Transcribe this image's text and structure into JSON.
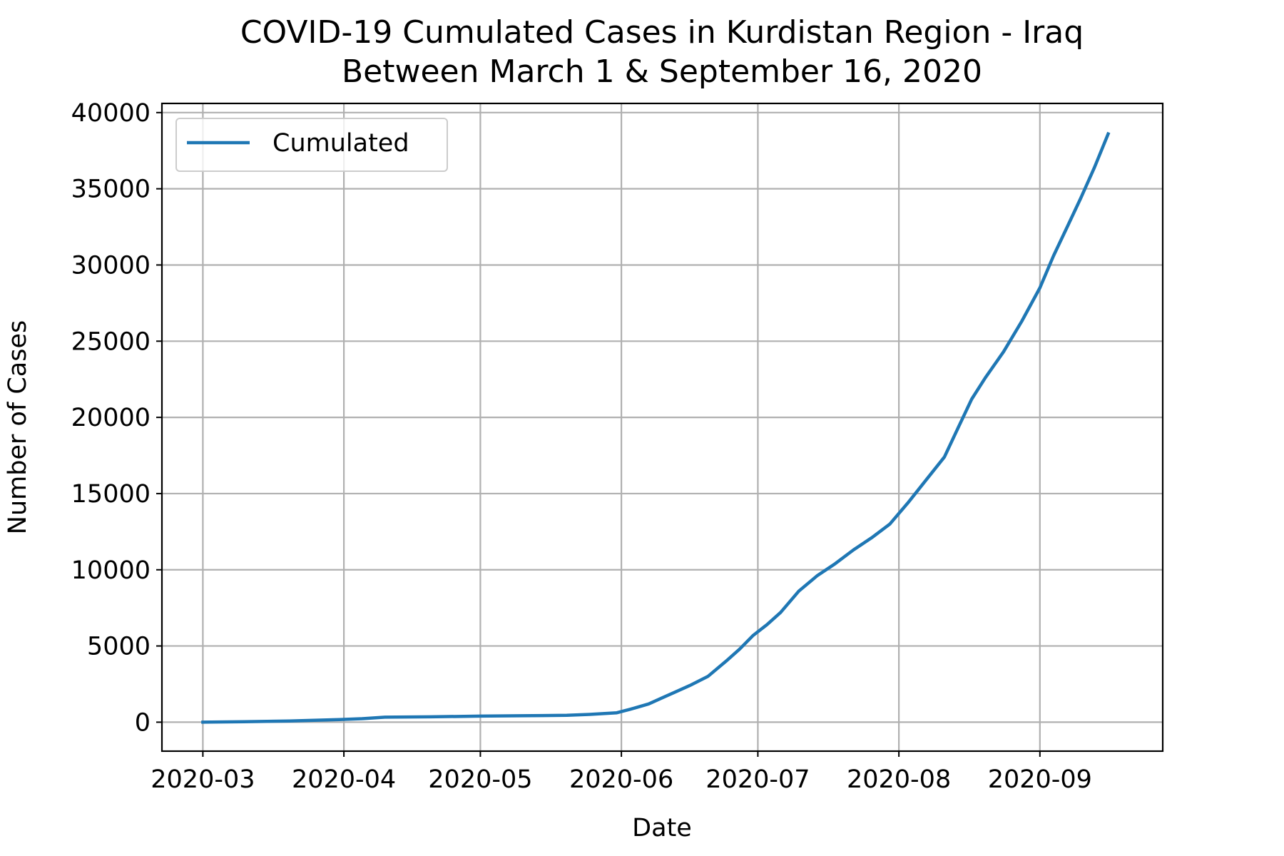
{
  "chart_data": {
    "type": "line",
    "title": "COVID-19 Cumulated Cases in Kurdistan Region - Iraq",
    "subtitle": "Between March 1 & September 16, 2020",
    "xlabel": "Date",
    "ylabel": "Number of Cases",
    "x_ticks": [
      "2020-03",
      "2020-04",
      "2020-05",
      "2020-06",
      "2020-07",
      "2020-08",
      "2020-09"
    ],
    "y_ticks": [
      "0",
      "5000",
      "10000",
      "15000",
      "20000",
      "25000",
      "30000",
      "35000",
      "40000"
    ],
    "xlim": [
      "2020-02-21",
      "2020-09-28"
    ],
    "ylim": [
      -1900,
      40600
    ],
    "grid": true,
    "legend_position": "top-left",
    "series": [
      {
        "name": "Cumulated",
        "color": "#1f77b4",
        "points": [
          [
            "2020-03-01",
            0
          ],
          [
            "2020-03-10",
            30
          ],
          [
            "2020-03-20",
            80
          ],
          [
            "2020-03-31",
            170
          ],
          [
            "2020-04-05",
            230
          ],
          [
            "2020-04-10",
            330
          ],
          [
            "2020-04-20",
            350
          ],
          [
            "2020-05-01",
            400
          ],
          [
            "2020-05-10",
            420
          ],
          [
            "2020-05-20",
            450
          ],
          [
            "2020-05-25",
            510
          ],
          [
            "2020-05-31",
            620
          ],
          [
            "2020-06-03",
            850
          ],
          [
            "2020-06-07",
            1200
          ],
          [
            "2020-06-10",
            1600
          ],
          [
            "2020-06-13",
            2000
          ],
          [
            "2020-06-16",
            2400
          ],
          [
            "2020-06-20",
            3000
          ],
          [
            "2020-06-24",
            4000
          ],
          [
            "2020-06-27",
            4800
          ],
          [
            "2020-06-30",
            5700
          ],
          [
            "2020-07-03",
            6400
          ],
          [
            "2020-07-06",
            7200
          ],
          [
            "2020-07-10",
            8600
          ],
          [
            "2020-07-14",
            9600
          ],
          [
            "2020-07-18",
            10400
          ],
          [
            "2020-07-22",
            11300
          ],
          [
            "2020-07-26",
            12100
          ],
          [
            "2020-07-30",
            13000
          ],
          [
            "2020-08-03",
            14400
          ],
          [
            "2020-08-07",
            15900
          ],
          [
            "2020-08-11",
            17400
          ],
          [
            "2020-08-14",
            19300
          ],
          [
            "2020-08-17",
            21200
          ],
          [
            "2020-08-20",
            22600
          ],
          [
            "2020-08-24",
            24300
          ],
          [
            "2020-08-28",
            26300
          ],
          [
            "2020-09-01",
            28500
          ],
          [
            "2020-09-04",
            30600
          ],
          [
            "2020-09-07",
            32500
          ],
          [
            "2020-09-10",
            34400
          ],
          [
            "2020-09-13",
            36400
          ],
          [
            "2020-09-16",
            38600
          ]
        ]
      }
    ]
  }
}
